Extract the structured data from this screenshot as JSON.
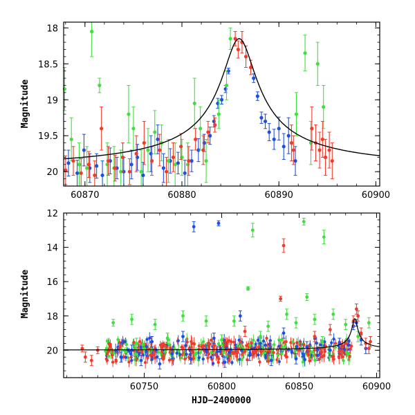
{
  "colors": {
    "blue": "#1f4fe0",
    "green": "#3ee03e",
    "red": "#f03a2a",
    "model": "#000000"
  },
  "chart_data": [
    {
      "type": "scatter",
      "title": "",
      "xlabel": "",
      "ylabel": "Magnitude",
      "xlim": [
        60867.8,
        60900.4
      ],
      "ylim": [
        20.2,
        17.92
      ],
      "y_inverted": true,
      "xticks": [
        60870,
        60880,
        60890,
        60900
      ],
      "yticks": [
        18,
        18.5,
        19,
        19.5,
        20
      ],
      "xtick_labels": [
        "60870",
        "60880",
        "60890",
        "60900"
      ],
      "ytick_labels": [
        "18",
        "18.5",
        "19",
        "19.5",
        "20"
      ],
      "grid": false,
      "legend": "none",
      "series": [
        {
          "color": "blue",
          "points": [
            [
              60868.3,
              19.88,
              0.18
            ],
            [
              60869.2,
              20.02,
              0.18
            ],
            [
              60869.9,
              19.7,
              0.22
            ],
            [
              60870.5,
              19.95,
              0.2
            ],
            [
              60871.2,
              19.92,
              0.17
            ],
            [
              60871.8,
              20.05,
              0.2
            ],
            [
              60872.6,
              19.85,
              0.18
            ],
            [
              60873.3,
              19.95,
              0.15
            ],
            [
              60874.0,
              20.0,
              0.2
            ],
            [
              60874.8,
              19.9,
              0.2
            ],
            [
              60875.4,
              19.8,
              0.18
            ],
            [
              60876.0,
              20.05,
              0.18
            ],
            [
              60876.8,
              19.75,
              0.25
            ],
            [
              60877.5,
              19.55,
              0.2
            ],
            [
              60878.1,
              19.95,
              0.2
            ],
            [
              60878.8,
              19.85,
              0.17
            ],
            [
              60879.6,
              19.88,
              0.15
            ],
            [
              60880.3,
              20.02,
              0.18
            ],
            [
              60881.0,
              19.85,
              0.15
            ],
            [
              60881.7,
              19.7,
              0.16
            ],
            [
              60882.3,
              19.6,
              0.12
            ],
            [
              60882.9,
              19.5,
              0.12
            ],
            [
              60883.3,
              19.3,
              0.08
            ],
            [
              60883.7,
              19.05,
              0.07
            ],
            [
              60884.1,
              19.0,
              0.06
            ],
            [
              60884.5,
              18.85,
              0.05
            ],
            [
              60884.8,
              18.6,
              0.04
            ],
            [
              60887.4,
              18.7,
              0.06
            ],
            [
              60887.8,
              18.95,
              0.06
            ],
            [
              60888.2,
              19.25,
              0.08
            ],
            [
              60888.6,
              19.3,
              0.1
            ],
            [
              60889.0,
              19.45,
              0.12
            ],
            [
              60889.5,
              19.55,
              0.14
            ],
            [
              60890.0,
              19.4,
              0.16
            ],
            [
              60890.5,
              19.65,
              0.18
            ],
            [
              60891.0,
              19.5,
              0.25
            ],
            [
              60891.7,
              19.85,
              0.2
            ]
          ]
        },
        {
          "color": "green",
          "points": [
            [
              60867.9,
              18.85,
              0.3
            ],
            [
              60868.6,
              19.55,
              0.3
            ],
            [
              60869.4,
              19.9,
              0.3
            ],
            [
              60870.2,
              19.95,
              0.3
            ],
            [
              60870.7,
              18.05,
              0.35
            ],
            [
              60871.5,
              18.8,
              0.1
            ],
            [
              60872.3,
              19.9,
              0.3
            ],
            [
              60873.0,
              19.95,
              0.3
            ],
            [
              60873.7,
              20.0,
              0.3
            ],
            [
              60874.5,
              19.2,
              0.4
            ],
            [
              60875.0,
              19.4,
              0.3
            ],
            [
              60875.8,
              20.0,
              0.3
            ],
            [
              60876.5,
              19.7,
              0.3
            ],
            [
              60877.2,
              19.45,
              0.3
            ],
            [
              60877.9,
              19.6,
              0.25
            ],
            [
              60878.6,
              19.85,
              0.3
            ],
            [
              60879.3,
              19.9,
              0.3
            ],
            [
              60880.0,
              19.8,
              0.25
            ],
            [
              60880.6,
              19.9,
              0.3
            ],
            [
              60881.3,
              19.05,
              0.35
            ],
            [
              60881.9,
              19.4,
              0.3
            ],
            [
              60882.5,
              19.85,
              0.3
            ],
            [
              60883.8,
              19.2,
              0.2
            ],
            [
              60884.6,
              18.8,
              0.2
            ],
            [
              60885.0,
              18.15,
              0.15
            ],
            [
              60891.8,
              19.2,
              0.3
            ],
            [
              60892.7,
              18.35,
              0.25
            ],
            [
              60893.3,
              19.6,
              0.3
            ],
            [
              60894.0,
              18.5,
              0.3
            ],
            [
              60894.6,
              19.1,
              0.3
            ]
          ]
        },
        {
          "color": "red",
          "points": [
            [
              60868.0,
              19.98,
              0.2
            ],
            [
              60868.8,
              19.85,
              0.2
            ],
            [
              60869.6,
              20.02,
              0.2
            ],
            [
              60870.4,
              19.9,
              0.18
            ],
            [
              60871.0,
              20.05,
              0.2
            ],
            [
              60871.7,
              19.4,
              0.3
            ],
            [
              60872.4,
              19.85,
              0.2
            ],
            [
              60873.1,
              19.95,
              0.18
            ],
            [
              60873.9,
              19.8,
              0.2
            ],
            [
              60874.6,
              20.0,
              0.18
            ],
            [
              60875.3,
              19.75,
              0.25
            ],
            [
              60876.1,
              19.6,
              0.3
            ],
            [
              60876.9,
              19.85,
              0.2
            ],
            [
              60877.7,
              19.7,
              0.22
            ],
            [
              60878.4,
              20.0,
              0.2
            ],
            [
              60879.1,
              19.8,
              0.2
            ],
            [
              60879.9,
              19.65,
              0.18
            ],
            [
              60880.7,
              19.85,
              0.2
            ],
            [
              60881.4,
              19.55,
              0.15
            ],
            [
              60882.2,
              19.7,
              0.2
            ],
            [
              60882.7,
              19.45,
              0.15
            ],
            [
              60883.4,
              19.35,
              0.1
            ],
            [
              60885.5,
              18.15,
              0.1
            ],
            [
              60885.8,
              18.3,
              0.12
            ],
            [
              60886.2,
              18.2,
              0.15
            ],
            [
              60886.6,
              18.4,
              0.15
            ],
            [
              60887.1,
              18.55,
              0.1
            ],
            [
              60891.3,
              19.6,
              0.25
            ],
            [
              60891.5,
              19.7,
              0.2
            ],
            [
              60893.4,
              19.4,
              0.3
            ],
            [
              60893.8,
              19.6,
              0.25
            ],
            [
              60894.2,
              19.7,
              0.25
            ],
            [
              60894.5,
              19.55,
              0.25
            ],
            [
              60894.8,
              19.8,
              0.25
            ],
            [
              60895.2,
              19.7,
              0.25
            ],
            [
              60895.5,
              19.85,
              0.25
            ]
          ]
        }
      ],
      "model_curve": {
        "color": "model",
        "peak_x": 60885.9,
        "peak_mag": 18.15,
        "baseline_mag": 20.0
      }
    },
    {
      "type": "scatter",
      "title": "",
      "xlabel": "HJD−2400000",
      "ylabel": "Magnitude",
      "xlim": [
        60698,
        60902
      ],
      "ylim": [
        21.6,
        12
      ],
      "y_inverted": true,
      "xticks": [
        60750,
        60800,
        60850,
        60900
      ],
      "yticks": [
        12,
        14,
        16,
        18,
        20
      ],
      "xtick_labels": [
        "60750",
        "60800",
        "60850",
        "60900"
      ],
      "ytick_labels": [
        "12",
        "14",
        "16",
        "18",
        "20"
      ],
      "grid": false,
      "legend": "none",
      "series": [
        {
          "color": "blue",
          "points": [
            [
              60782,
              12.8,
              0.3
            ],
            [
              60798,
              12.6,
              0.15
            ],
            [
              60735,
              20.4,
              0.3
            ],
            [
              60742,
              20.0,
              0.3
            ],
            [
              60748,
              20.6,
              0.3
            ],
            [
              60755,
              19.5,
              0.3
            ],
            [
              60760,
              20.8,
              0.3
            ],
            [
              60768,
              20.2,
              0.3
            ],
            [
              60775,
              19.2,
              0.3
            ],
            [
              60780,
              20.5,
              0.3
            ],
            [
              60790,
              20.0,
              0.3
            ],
            [
              60795,
              19.3,
              0.3
            ],
            [
              60802,
              20.7,
              0.3
            ],
            [
              60812,
              18.0,
              0.3
            ],
            [
              60818,
              20.3,
              0.3
            ],
            [
              60825,
              19.6,
              0.3
            ],
            [
              60832,
              20.6,
              0.3
            ],
            [
              60840,
              19.0,
              0.3
            ],
            [
              60848,
              20.5,
              0.3
            ],
            [
              60855,
              19.8,
              0.3
            ],
            [
              60862,
              20.3,
              0.3
            ],
            [
              60870,
              20.0,
              0.3
            ],
            [
              60876,
              19.6,
              0.3
            ],
            [
              60882,
              19.7,
              0.3
            ],
            [
              60885,
              18.6,
              0.2
            ],
            [
              60887,
              18.4,
              0.2
            ],
            [
              60890,
              19.4,
              0.3
            ],
            [
              60893,
              19.9,
              0.3
            ]
          ]
        },
        {
          "color": "green",
          "points": [
            [
              60820,
              13.0,
              0.4
            ],
            [
              60853,
              12.5,
              0.2
            ],
            [
              60866,
              13.4,
              0.4
            ],
            [
              60817,
              16.4,
              0.1
            ],
            [
              60855,
              16.9,
              0.2
            ],
            [
              60730,
              18.4,
              0.2
            ],
            [
              60742,
              18.2,
              0.3
            ],
            [
              60757,
              18.5,
              0.3
            ],
            [
              60775,
              18.0,
              0.3
            ],
            [
              60790,
              18.3,
              0.3
            ],
            [
              60808,
              18.3,
              0.3
            ],
            [
              60830,
              18.6,
              0.3
            ],
            [
              60842,
              17.9,
              0.3
            ],
            [
              60848,
              18.4,
              0.3
            ],
            [
              60860,
              18.2,
              0.3
            ],
            [
              60872,
              17.9,
              0.3
            ],
            [
              60880,
              18.5,
              0.3
            ],
            [
              60895,
              18.4,
              0.3
            ],
            [
              60745,
              19.6,
              0.3
            ],
            [
              60765,
              19.3,
              0.3
            ],
            [
              60800,
              19.4,
              0.3
            ],
            [
              60825,
              19.2,
              0.3
            ],
            [
              60865,
              19.5,
              0.3
            ],
            [
              60888,
              19.2,
              0.3
            ]
          ]
        },
        {
          "color": "red",
          "points": [
            [
              60840,
              13.9,
              0.4
            ],
            [
              60838,
              17.0,
              0.15
            ],
            [
              60710,
              19.9,
              0.2
            ],
            [
              60712,
              20.4,
              0.3
            ],
            [
              60716,
              20.6,
              0.3
            ],
            [
              60720,
              20.0,
              0.2
            ],
            [
              60870,
              18.8,
              0.3
            ],
            [
              60885,
              18.3,
              0.3
            ],
            [
              60887,
              17.6,
              0.3
            ],
            [
              60888,
              18.0,
              0.3
            ],
            [
              60890,
              19.0,
              0.3
            ],
            [
              60893,
              19.6,
              0.3
            ],
            [
              60895,
              19.9,
              0.3
            ],
            [
              60896,
              19.5,
              0.3
            ],
            [
              60815,
              18.9,
              0.3
            ],
            [
              60860,
              19.2,
              0.3
            ]
          ]
        }
      ],
      "band": {
        "x_start": 60725,
        "x_end": 60884,
        "center_mag": 20.05,
        "spread_mag": 0.55
      },
      "model_curve": {
        "color": "model",
        "peak_x": 60885.9,
        "peak_mag": 18.15,
        "baseline_mag": 20.0
      }
    }
  ]
}
